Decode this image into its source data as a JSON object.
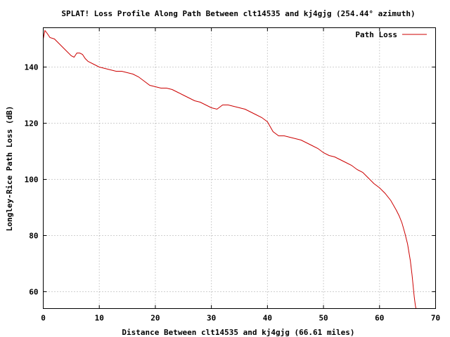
{
  "chart_data": {
    "type": "line",
    "title": "SPLAT! Loss Profile Along Path Between clt14535 and kj4gjg (254.44° azimuth)",
    "xlabel": "Distance Between clt14535 and kj4gjg (66.61 miles)",
    "ylabel": "Longley-Rice Path Loss (dB)",
    "xlim": [
      0,
      70
    ],
    "ylim": [
      54,
      154
    ],
    "xticks": [
      0,
      10,
      20,
      30,
      40,
      50,
      60,
      70
    ],
    "yticks": [
      60,
      80,
      100,
      120,
      140
    ],
    "grid": true,
    "legend_position": "top-right",
    "colors": {
      "series": "#cc0000",
      "grid": "#a0a0a0"
    },
    "series": [
      {
        "name": "Path Loss",
        "x": [
          0,
          0.3,
          0.7,
          1.2,
          2,
          3,
          3.5,
          4,
          5,
          5.5,
          6,
          6.5,
          7,
          7.5,
          8,
          9,
          10,
          11,
          12,
          13,
          14,
          15,
          16,
          17,
          18,
          19,
          20,
          21,
          22,
          23,
          24,
          25,
          26,
          27,
          28,
          29,
          30,
          31,
          32,
          33,
          34,
          35,
          36,
          37,
          38,
          39,
          40,
          41,
          42,
          43,
          44,
          45,
          46,
          47,
          48,
          49,
          50,
          51,
          52,
          53,
          54,
          55,
          56,
          57,
          58,
          59,
          60,
          61,
          62,
          63,
          63.5,
          64,
          64.5,
          65,
          65.5,
          65.8,
          66,
          66.2,
          66.4,
          66.61
        ],
        "values": [
          150,
          153,
          152,
          150.5,
          150,
          148,
          147,
          146,
          144,
          143.5,
          145,
          145,
          144.5,
          143,
          142,
          141,
          140,
          139.5,
          139,
          138.5,
          138.5,
          138,
          137.5,
          136.5,
          135,
          133.5,
          133,
          132.5,
          132.5,
          132,
          131,
          130,
          129,
          128,
          127.5,
          126.5,
          125.5,
          125,
          126.5,
          126.5,
          126,
          125.5,
          125,
          124,
          123,
          122,
          120.5,
          117,
          115.5,
          115.5,
          115,
          114.5,
          114,
          113,
          112,
          111,
          109.5,
          108.5,
          108,
          107,
          106,
          105,
          103.5,
          102.5,
          100.5,
          98.5,
          97,
          95,
          92.5,
          89,
          87,
          84.5,
          81,
          77,
          71,
          66,
          62,
          58,
          55,
          53
        ]
      }
    ]
  }
}
